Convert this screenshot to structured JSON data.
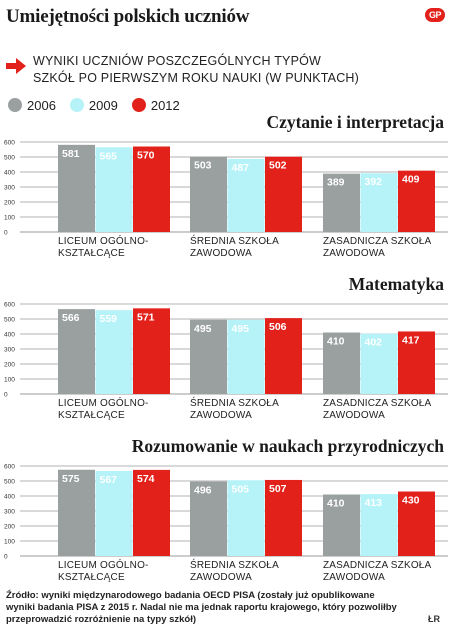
{
  "title": "Umiejętności polskich uczniów",
  "logo": "GP",
  "subtitle_lines": [
    "WYNIKI UCZNIÓW POSZCZEGÓLNYCH TYPÓW",
    "SZKÓŁ PO PIERWSZYM ROKU NAUKI (W PUNKTACH)"
  ],
  "legend": [
    {
      "label": "2006",
      "color": "#9aa0a0"
    },
    {
      "label": "2009",
      "color": "#b5f3f8"
    },
    {
      "label": "2012",
      "color": "#e3211b"
    }
  ],
  "chart_data": [
    {
      "type": "bar",
      "title": "Czytanie i interpretacja",
      "categories": [
        "LICEUM OGÓLNO-\nKSZTAŁCĄCE",
        "ŚREDNIA SZKOŁA\nZAWODOWA",
        "ZASADNICZA SZKOŁA\nZAWODOWA"
      ],
      "series": [
        {
          "name": "2006",
          "values": [
            581,
            503,
            389
          ]
        },
        {
          "name": "2009",
          "values": [
            565,
            487,
            392
          ]
        },
        {
          "name": "2012",
          "values": [
            570,
            502,
            409
          ]
        }
      ],
      "yticks": [
        0,
        100,
        200,
        300,
        400,
        500,
        600
      ],
      "ylim": [
        0,
        600
      ],
      "grid": true
    },
    {
      "type": "bar",
      "title": "Matematyka",
      "categories": [
        "LICEUM OGÓLNO-\nKSZTAŁCĄCE",
        "ŚREDNIA SZKOŁA\nZAWODOWA",
        "ZASADNICZA SZKOŁA\nZAWODOWA"
      ],
      "series": [
        {
          "name": "2006",
          "values": [
            566,
            495,
            410
          ]
        },
        {
          "name": "2009",
          "values": [
            559,
            495,
            402
          ]
        },
        {
          "name": "2012",
          "values": [
            571,
            506,
            417
          ]
        }
      ],
      "yticks": [
        0,
        100,
        200,
        300,
        400,
        500,
        600
      ],
      "ylim": [
        0,
        600
      ],
      "grid": true
    },
    {
      "type": "bar",
      "title": "Rozumowanie w naukach przyrodniczych",
      "categories": [
        "LICEUM OGÓLNO-\nKSZTAŁCĄCE",
        "ŚREDNIA SZKOŁA\nZAWODOWA",
        "ZASADNICZA SZKOŁA\nZAWODOWA"
      ],
      "series": [
        {
          "name": "2006",
          "values": [
            575,
            496,
            410
          ]
        },
        {
          "name": "2009",
          "values": [
            567,
            505,
            413
          ]
        },
        {
          "name": "2012",
          "values": [
            574,
            507,
            430
          ]
        }
      ],
      "yticks": [
        0,
        100,
        200,
        300,
        400,
        500,
        600
      ],
      "ylim": [
        0,
        600
      ],
      "grid": true
    }
  ],
  "source": "Źródło: wyniki międzynarodowego badania OECD PISA (zostały już opublikowane wyniki badania PISA z 2015 r. Nadal nie ma jednak raportu krajowego, który pozwoliłby przeprowadzić rozróżnienie na typy szkół)",
  "author": "ŁR"
}
